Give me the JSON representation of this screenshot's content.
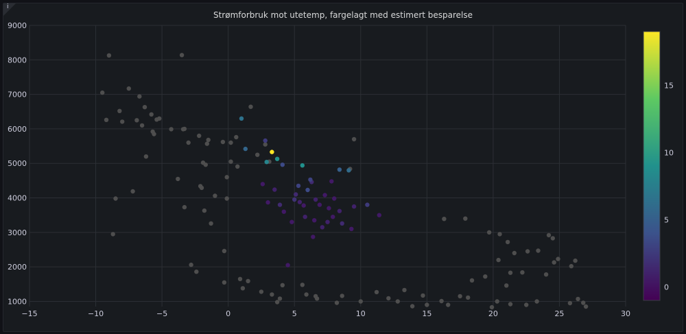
{
  "panel": {
    "title": "Strømforbruk mot utetemp, fargelagt med estimert besparelse",
    "info_glyph": "i"
  },
  "colors": {
    "background": "#181b1f",
    "grid": "#2c2f35",
    "tick_text": "#ccccdc",
    "point_default": "#4e4e4e"
  },
  "chart_data": {
    "type": "scatter",
    "title": "Strømforbruk mot utetemp, fargelagt med estimert besparelse",
    "xlim": [
      -15,
      30
    ],
    "ylim": [
      850,
      9000
    ],
    "x_ticks": [
      "−15",
      "−10",
      "−5",
      "0",
      "5",
      "10",
      "15",
      "20",
      "25",
      "30"
    ],
    "y_ticks": [
      "1000",
      "2000",
      "3000",
      "4000",
      "5000",
      "6000",
      "7000",
      "8000",
      "9000"
    ],
    "colorbar": {
      "colormap": "viridis",
      "range": [
        -1,
        19
      ],
      "ticks": [
        "0",
        "5",
        "10",
        "15"
      ]
    },
    "grid": true,
    "points": [
      [
        -9,
        8130,
        null
      ],
      [
        -3.5,
        8140,
        null
      ],
      [
        -9.5,
        7050,
        null
      ],
      [
        -7.5,
        7170,
        null
      ],
      [
        -6.7,
        6940,
        null
      ],
      [
        -8.2,
        6520,
        null
      ],
      [
        -6.3,
        6630,
        null
      ],
      [
        -5.8,
        6420,
        null
      ],
      [
        -9.2,
        6260,
        null
      ],
      [
        -8,
        6210,
        null
      ],
      [
        -6.9,
        6250,
        null
      ],
      [
        -6.5,
        6100,
        null
      ],
      [
        -5.4,
        6270,
        null
      ],
      [
        -5.2,
        6300,
        null
      ],
      [
        -5.7,
        5920,
        null
      ],
      [
        -5.6,
        5850,
        null
      ],
      [
        -4.3,
        5990,
        null
      ],
      [
        -3.4,
        5990,
        null
      ],
      [
        -3.3,
        6000,
        null
      ],
      [
        -2.2,
        5800,
        null
      ],
      [
        -3,
        5600,
        null
      ],
      [
        -1.5,
        5680,
        null
      ],
      [
        -1.6,
        5570,
        null
      ],
      [
        -0.4,
        5620,
        null
      ],
      [
        0.2,
        5600,
        null
      ],
      [
        0.6,
        5760,
        null
      ],
      [
        -6.2,
        5200,
        null
      ],
      [
        -1.9,
        5020,
        null
      ],
      [
        -1.7,
        4960,
        null
      ],
      [
        0.2,
        5050,
        null
      ],
      [
        0.7,
        4910,
        null
      ],
      [
        -3.8,
        4550,
        null
      ],
      [
        -0.1,
        4600,
        null
      ],
      [
        -7.2,
        4190,
        null
      ],
      [
        -2.1,
        4340,
        null
      ],
      [
        -2,
        4290,
        null
      ],
      [
        -8.5,
        3980,
        null
      ],
      [
        -3.3,
        3730,
        null
      ],
      [
        -1,
        4060,
        null
      ],
      [
        -0.1,
        3980,
        null
      ],
      [
        -1.8,
        3630,
        null
      ],
      [
        -1.3,
        3260,
        null
      ],
      [
        -8.7,
        2950,
        null
      ],
      [
        -2.8,
        2060,
        null
      ],
      [
        -2.4,
        1860,
        null
      ],
      [
        -0.3,
        2460,
        null
      ],
      [
        -0.3,
        1550,
        null
      ],
      [
        0.9,
        1650,
        null
      ],
      [
        1.5,
        1590,
        null
      ],
      [
        1.1,
        1380,
        null
      ],
      [
        2.5,
        1280,
        null
      ],
      [
        3.3,
        1200,
        null
      ],
      [
        3.9,
        1080,
        null
      ],
      [
        3.7,
        980,
        null
      ],
      [
        4.1,
        1470,
        null
      ],
      [
        5.6,
        1480,
        null
      ],
      [
        5.9,
        1200,
        null
      ],
      [
        6.6,
        1150,
        null
      ],
      [
        6.7,
        1080,
        null
      ],
      [
        8.2,
        960,
        null
      ],
      [
        8.6,
        1160,
        null
      ],
      [
        10,
        1000,
        null
      ],
      [
        11.2,
        1270,
        null
      ],
      [
        12.8,
        1000,
        null
      ],
      [
        14.7,
        1170,
        null
      ],
      [
        22.6,
        2450,
        null
      ],
      [
        23.4,
        2470,
        null
      ],
      [
        24.2,
        2920,
        null
      ],
      [
        24.5,
        2830,
        null
      ],
      [
        24.6,
        2130,
        null
      ],
      [
        24.9,
        2230,
        null
      ],
      [
        25.9,
        2020,
        null
      ],
      [
        26.2,
        2180,
        null
      ],
      [
        24,
        1780,
        null
      ],
      [
        25.8,
        950,
        null
      ],
      [
        26.4,
        1070,
        null
      ],
      [
        26.8,
        960,
        null
      ],
      [
        27,
        850,
        null
      ],
      [
        21.3,
        1830,
        null
      ],
      [
        20.3,
        1000,
        null
      ],
      [
        19.9,
        830,
        null
      ],
      [
        21.3,
        920,
        null
      ],
      [
        22.5,
        900,
        null
      ],
      [
        23.3,
        1000,
        null
      ],
      [
        18.1,
        1110,
        null
      ],
      [
        18.4,
        1610,
        null
      ],
      [
        19.4,
        1720,
        null
      ],
      [
        21,
        1460,
        null
      ],
      [
        22.2,
        1840,
        null
      ],
      [
        16.1,
        1010,
        null
      ],
      [
        17.5,
        1150,
        null
      ],
      [
        16.6,
        900,
        null
      ],
      [
        15,
        900,
        null
      ],
      [
        13.9,
        860,
        null
      ],
      [
        12.1,
        1090,
        null
      ],
      [
        13.3,
        1330,
        null
      ],
      [
        16.3,
        3390,
        null
      ],
      [
        17.9,
        3400,
        null
      ],
      [
        19.7,
        3000,
        null
      ],
      [
        20.5,
        2950,
        null
      ],
      [
        21.1,
        2720,
        null
      ],
      [
        21.6,
        2400,
        null
      ],
      [
        20.4,
        2200,
        null
      ],
      [
        9.5,
        5700,
        null
      ],
      [
        9.2,
        4840,
        null
      ],
      [
        1.7,
        6640,
        null
      ],
      [
        2.8,
        5550,
        null
      ],
      [
        2.2,
        5250,
        null
      ],
      [
        3.1,
        5050,
        null
      ],
      [
        1,
        6300,
        6.5
      ],
      [
        1.3,
        5420,
        5.5
      ],
      [
        2.8,
        5660,
        2.5
      ],
      [
        3.3,
        5330,
        19
      ],
      [
        3.7,
        5130,
        9
      ],
      [
        2.9,
        5040,
        8
      ],
      [
        4.1,
        4960,
        3.5
      ],
      [
        5.6,
        4940,
        9
      ],
      [
        8.4,
        4820,
        5
      ],
      [
        9.1,
        4800,
        6
      ],
      [
        6.2,
        4530,
        3
      ],
      [
        6.3,
        4460,
        1.5
      ],
      [
        7.8,
        4480,
        0.5
      ],
      [
        5.3,
        4350,
        3
      ],
      [
        6,
        4230,
        3.5
      ],
      [
        5.1,
        4100,
        1.5
      ],
      [
        7.3,
        4080,
        0.5
      ],
      [
        5.4,
        3880,
        1
      ],
      [
        6.9,
        3800,
        0.5
      ],
      [
        7.6,
        3700,
        0.5
      ],
      [
        8.4,
        3620,
        1
      ],
      [
        9.5,
        3750,
        1
      ],
      [
        10.5,
        3800,
        2.5
      ],
      [
        11.4,
        3500,
        0.5
      ],
      [
        4.2,
        3600,
        0.5
      ],
      [
        5.8,
        3450,
        1
      ],
      [
        6.5,
        3350,
        0.5
      ],
      [
        7.5,
        3300,
        1
      ],
      [
        8.6,
        3260,
        1.5
      ],
      [
        9.3,
        3100,
        0.5
      ],
      [
        4.5,
        2050,
        0.5
      ],
      [
        6.4,
        2870,
        0.5
      ],
      [
        7.9,
        3450,
        0.5
      ],
      [
        3,
        3870,
        0.5
      ],
      [
        3.5,
        4240,
        1
      ],
      [
        2.6,
        4400,
        0.5
      ],
      [
        5,
        3950,
        2
      ],
      [
        6.6,
        3950,
        1
      ],
      [
        8,
        3980,
        0.5
      ],
      [
        3.9,
        3800,
        1.5
      ],
      [
        4.8,
        3300,
        0.5
      ],
      [
        7.1,
        3150,
        1
      ],
      [
        5.7,
        3780,
        0.5
      ]
    ]
  }
}
